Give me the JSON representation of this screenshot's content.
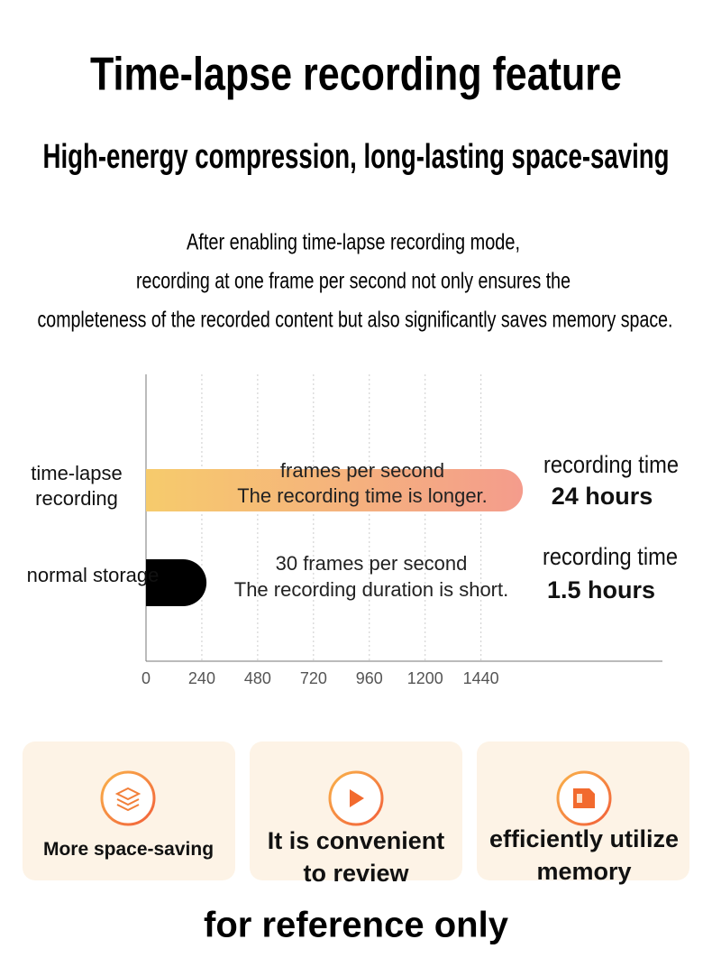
{
  "header": {
    "title": "Time-lapse recording feature",
    "subtitle": "High-energy compression, long-lasting space-saving",
    "description": [
      "After enabling time-lapse recording mode,",
      "recording at one frame per second not only ensures the",
      "completeness of the recorded content but also significantly saves memory space."
    ]
  },
  "chart_data": {
    "type": "bar",
    "orientation": "horizontal",
    "categories": [
      "time-lapse recording",
      "normal storage"
    ],
    "series": [
      {
        "values": [
          1620,
          260
        ],
        "colors": [
          [
            "#f6cb6c",
            "#f49c8c"
          ],
          [
            "#000000",
            "#000000"
          ]
        ]
      }
    ],
    "annotations": [
      {
        "lines": [
          "frames per second",
          "The recording time is longer."
        ],
        "time_label": "recording time",
        "time": "24 hours"
      },
      {
        "lines": [
          "30 frames per second",
          "The recording duration is short."
        ],
        "time_label": "recording time",
        "time": "1.5 hours"
      }
    ],
    "xlim": [
      0,
      2220
    ],
    "xticks": [
      0,
      240,
      480,
      720,
      960,
      1200,
      1440
    ],
    "grid": true
  },
  "features": [
    {
      "label": "More space-saving"
    },
    {
      "label": "It is convenient to review"
    },
    {
      "label": "efficiently utilize memory"
    }
  ],
  "footer": "for reference only"
}
